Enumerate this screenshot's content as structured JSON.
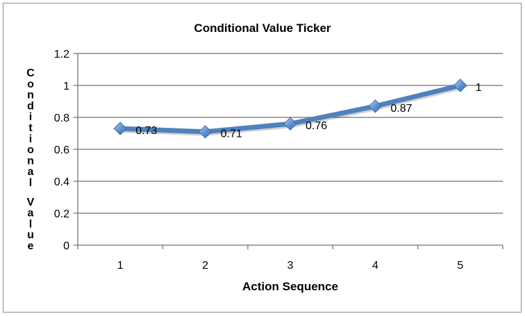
{
  "chart_data": {
    "type": "line",
    "title": "Conditional Value Ticker",
    "xlabel": "Action Sequence",
    "ylabel": "Conditional Value",
    "categories": [
      "1",
      "2",
      "3",
      "4",
      "5"
    ],
    "series": [
      {
        "values": [
          0.73,
          0.71,
          0.76,
          0.87,
          1.0
        ],
        "color": "#4f81bd"
      }
    ],
    "data_labels": [
      "0.73",
      "0.71",
      "0.76",
      "0.87",
      "1"
    ],
    "yticks": [
      "0",
      "0.2",
      "0.4",
      "0.6",
      "0.8",
      "1",
      "1.2"
    ],
    "ylim": [
      0,
      1.2
    ],
    "grid": true,
    "legend": "none",
    "gridline_color": "#898989"
  }
}
